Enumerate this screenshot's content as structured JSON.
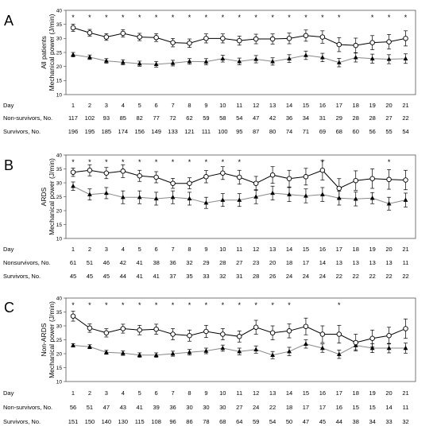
{
  "chart_data": [
    {
      "type": "line",
      "panel": "A",
      "ylabel": [
        "All patients",
        "Mechanical power (J/min)"
      ],
      "ylim": [
        10,
        40
      ],
      "yticks": [
        10,
        15,
        20,
        25,
        30,
        35,
        40
      ],
      "x_label": "Day",
      "x": [
        1,
        2,
        3,
        4,
        5,
        6,
        7,
        8,
        9,
        10,
        11,
        12,
        13,
        14,
        15,
        16,
        17,
        18,
        19,
        20,
        21
      ],
      "significant_days": [
        1,
        2,
        3,
        4,
        5,
        6,
        7,
        8,
        9,
        10,
        11,
        12,
        13,
        14,
        15,
        16,
        17,
        19,
        20,
        21
      ],
      "significance_marker": "*",
      "series": [
        {
          "marker": "open-circle",
          "line_color": "#000000",
          "values": [
            33.8,
            32.0,
            30.5,
            31.8,
            30.5,
            30.3,
            28.5,
            28.3,
            30.0,
            30.0,
            29.2,
            29.8,
            29.8,
            30.0,
            31.0,
            30.5,
            27.8,
            27.5,
            28.5,
            28.8,
            30.0
          ],
          "errors": [
            1.3,
            1.2,
            1.2,
            1.3,
            1.3,
            1.4,
            1.5,
            1.5,
            1.6,
            1.6,
            1.6,
            1.7,
            1.8,
            1.9,
            2.0,
            2.2,
            2.5,
            2.6,
            2.5,
            2.6,
            2.7
          ]
        },
        {
          "marker": "filled-triangle",
          "line_color": "#888888",
          "values": [
            24.2,
            23.3,
            22.0,
            21.5,
            21.0,
            20.8,
            21.2,
            21.8,
            21.7,
            22.8,
            21.8,
            22.6,
            21.8,
            22.8,
            24.0,
            23.2,
            21.4,
            23.2,
            22.8,
            22.6,
            22.8
          ]
        },
        {
          "role": "error",
          "values": [
            0.8,
            0.8,
            0.8,
            0.9,
            0.9,
            1.0,
            1.0,
            1.0,
            1.1,
            1.2,
            1.2,
            1.3,
            1.3,
            1.4,
            1.5,
            1.5,
            1.5,
            1.6,
            1.6,
            1.6,
            1.7
          ]
        }
      ],
      "count_rows": [
        {
          "label": "Non-survivors, No.",
          "values": [
            117,
            102,
            93,
            85,
            82,
            77,
            72,
            62,
            59,
            58,
            54,
            47,
            42,
            36,
            34,
            31,
            29,
            28,
            28,
            27,
            22
          ]
        },
        {
          "label": "Survivors, No.",
          "values": [
            196,
            195,
            185,
            174,
            156,
            149,
            133,
            121,
            111,
            100,
            95,
            87,
            80,
            74,
            71,
            69,
            68,
            60,
            56,
            55,
            54
          ]
        }
      ]
    },
    {
      "type": "line",
      "panel": "B",
      "ylabel": [
        "ARDS",
        "Mechanical power (J/min)"
      ],
      "ylim": [
        10,
        40
      ],
      "yticks": [
        10,
        15,
        20,
        25,
        30,
        35,
        40
      ],
      "x_label": "Day",
      "x": [
        1,
        2,
        3,
        4,
        5,
        6,
        7,
        8,
        9,
        10,
        11,
        12,
        13,
        14,
        15,
        16,
        17,
        18,
        19,
        20,
        21
      ],
      "significant_days": [
        1,
        2,
        3,
        4,
        5,
        6,
        7,
        8,
        9,
        10,
        11,
        16,
        20
      ],
      "significance_marker": "*",
      "series": [
        {
          "marker": "open-circle",
          "line_color": "#000000",
          "values": [
            33.8,
            34.5,
            33.5,
            34.2,
            32.5,
            32.0,
            29.8,
            29.8,
            32.2,
            33.5,
            32.0,
            29.8,
            32.8,
            31.5,
            32.2,
            34.5,
            28.0,
            30.8,
            31.5,
            31.2,
            31.0
          ],
          "errors": [
            1.5,
            2.0,
            2.0,
            2.3,
            2.0,
            2.0,
            1.8,
            2.0,
            2.2,
            2.3,
            2.5,
            2.5,
            3.0,
            3.0,
            3.0,
            3.5,
            3.5,
            3.5,
            3.5,
            3.5,
            3.5
          ]
        },
        {
          "marker": "filled-triangle",
          "line_color": "#888888",
          "values": [
            28.8,
            25.8,
            26.3,
            24.8,
            24.8,
            24.3,
            24.8,
            24.3,
            22.8,
            23.8,
            23.8,
            25.0,
            26.3,
            25.8,
            25.3,
            25.8,
            24.5,
            24.2,
            24.5,
            22.5,
            23.8
          ],
          "errors": [
            1.5,
            2.0,
            2.0,
            2.3,
            2.3,
            2.3,
            2.3,
            2.3,
            2.0,
            2.3,
            2.3,
            2.5,
            2.5,
            2.5,
            2.5,
            2.5,
            2.5,
            2.5,
            2.0,
            2.3,
            2.5
          ]
        }
      ],
      "count_rows": [
        {
          "label": "Nonsurvivors, No.",
          "values": [
            61,
            51,
            46,
            42,
            41,
            38,
            36,
            32,
            29,
            28,
            27,
            23,
            20,
            18,
            17,
            14,
            13,
            13,
            13,
            13,
            11
          ]
        },
        {
          "label": "Survivors, No.",
          "values": [
            45,
            45,
            45,
            44,
            41,
            41,
            37,
            35,
            33,
            32,
            31,
            28,
            26,
            24,
            24,
            24,
            22,
            22,
            22,
            22,
            22
          ]
        }
      ]
    },
    {
      "type": "line",
      "panel": "C",
      "ylabel": [
        "Non-ARDS",
        "Mechanical power (J/min)"
      ],
      "ylim": [
        10,
        40
      ],
      "yticks": [
        10,
        15,
        20,
        25,
        30,
        35,
        40
      ],
      "x_label": "Day",
      "x": [
        1,
        2,
        3,
        4,
        5,
        6,
        7,
        8,
        9,
        10,
        11,
        12,
        13,
        14,
        15,
        16,
        17,
        18,
        19,
        20,
        21
      ],
      "significant_days": [
        1,
        2,
        3,
        4,
        5,
        6,
        7,
        8,
        9,
        10,
        11,
        12,
        13,
        14,
        17
      ],
      "significance_marker": "*",
      "series": [
        {
          "marker": "open-circle",
          "line_color": "#000000",
          "values": [
            33.5,
            29.2,
            27.5,
            29.0,
            28.5,
            28.8,
            27.0,
            26.5,
            28.0,
            27.0,
            26.2,
            29.5,
            27.5,
            28.2,
            29.8,
            27.0,
            27.0,
            24.0,
            25.5,
            26.5,
            29.0
          ],
          "errors": [
            1.8,
            1.5,
            1.5,
            1.6,
            1.7,
            1.8,
            2.0,
            2.0,
            2.2,
            2.0,
            2.0,
            2.5,
            2.5,
            2.5,
            3.0,
            3.0,
            3.2,
            3.0,
            3.0,
            3.0,
            3.5
          ]
        },
        {
          "marker": "filled-triangle",
          "line_color": "#888888",
          "values": [
            23.0,
            22.5,
            20.5,
            20.2,
            19.5,
            19.5,
            20.0,
            20.5,
            21.0,
            22.0,
            20.8,
            21.5,
            19.5,
            20.8,
            23.5,
            22.0,
            19.8,
            23.0,
            22.0,
            22.0,
            22.0
          ],
          "errors": [
            0.6,
            0.7,
            0.7,
            0.8,
            0.8,
            0.8,
            0.9,
            1.0,
            1.0,
            1.1,
            1.2,
            1.3,
            1.3,
            1.5,
            1.5,
            1.5,
            1.5,
            1.6,
            1.6,
            1.7,
            1.8
          ]
        }
      ],
      "count_rows": [
        {
          "label": "Non-survivors, No.",
          "values": [
            56,
            51,
            47,
            43,
            41,
            39,
            36,
            30,
            30,
            30,
            27,
            24,
            22,
            18,
            17,
            17,
            16,
            15,
            15,
            14,
            11
          ]
        },
        {
          "label": "Survivors, No.",
          "values": [
            151,
            150,
            140,
            130,
            115,
            108,
            96,
            86,
            78,
            68,
            64,
            59,
            54,
            50,
            47,
            45,
            44,
            38,
            34,
            33,
            32
          ]
        }
      ]
    }
  ]
}
